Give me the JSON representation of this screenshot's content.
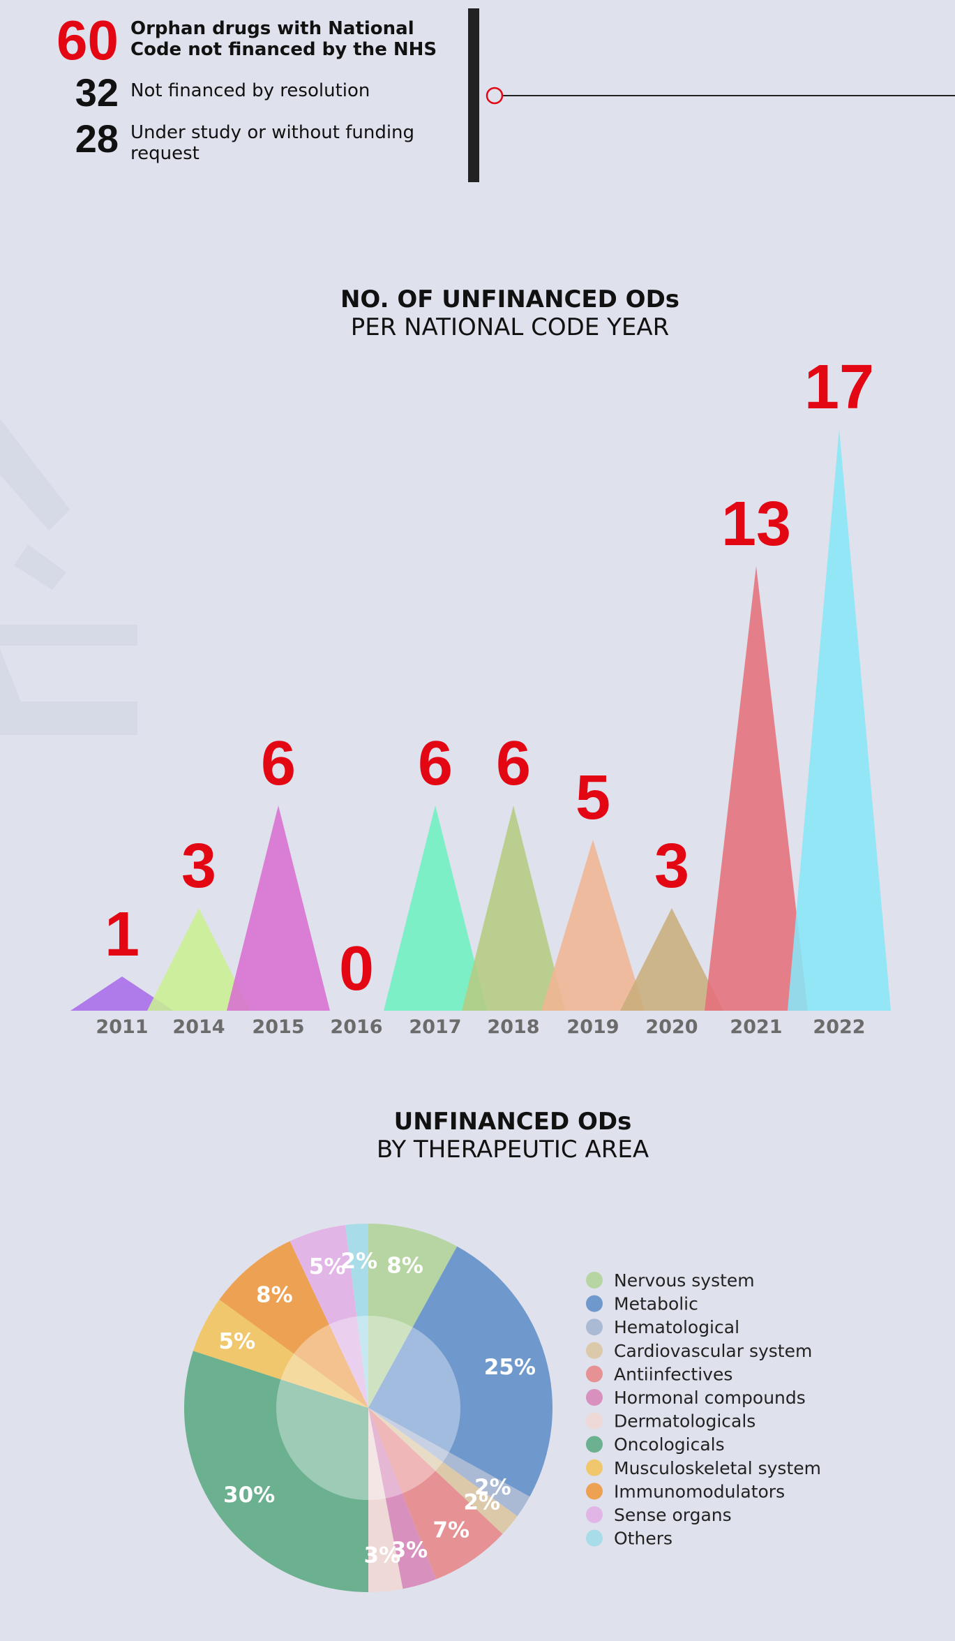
{
  "summary": {
    "total": {
      "value": 60,
      "label": "Orphan drugs with National Code not financed by the NHS"
    },
    "items": [
      {
        "value": 32,
        "label": "Not financed by resolution"
      },
      {
        "value": 28,
        "label": "Under study or without funding request"
      }
    ]
  },
  "chart_data": [
    {
      "type": "triangle",
      "title": "NO. OF UNFINANCED ODs",
      "subtitle": "PER NATIONAL CODE YEAR",
      "categories": [
        "2011",
        "2014",
        "2015",
        "2016",
        "2017",
        "2018",
        "2019",
        "2020",
        "2021",
        "2022"
      ],
      "values": [
        1,
        3,
        6,
        0,
        6,
        6,
        5,
        3,
        13,
        17
      ],
      "colors": [
        "#a86be8",
        "#c9ef92",
        "#d96fd2",
        "#a9a9b8",
        "#6ff0c2",
        "#b5cc82",
        "#f0b594",
        "#c9ae7c",
        "#e56f7b",
        "#87e6f6"
      ]
    },
    {
      "type": "pie",
      "title": "UNFINANCED ODs",
      "subtitle": "BY THERAPEUTIC AREA",
      "categories": [
        "Nervous system",
        "Metabolic",
        "Hematological",
        "Cardiovascular system",
        "Antiinfectives",
        "Hormonal compounds",
        "Dermatologicals",
        "Oncologicals",
        "Musculoskeletal system",
        "Immunomodulators",
        "Sense organs",
        "Others"
      ],
      "values": [
        8,
        25,
        2,
        2,
        7,
        3,
        3,
        30,
        5,
        8,
        5,
        2
      ],
      "value_labels": [
        "8%",
        "25%",
        "2%",
        "2%",
        "7%",
        "3%",
        "3%",
        "30%",
        "5%",
        "8%",
        "5%",
        "2%"
      ],
      "colors": [
        "#b6d5a2",
        "#6f99cc",
        "#aab9d4",
        "#dcc9aa",
        "#e69193",
        "#d891be",
        "#eed9d6",
        "#6bb08f",
        "#f0c76d",
        "#eda152",
        "#e1b5e5",
        "#a9dce9"
      ]
    }
  ]
}
